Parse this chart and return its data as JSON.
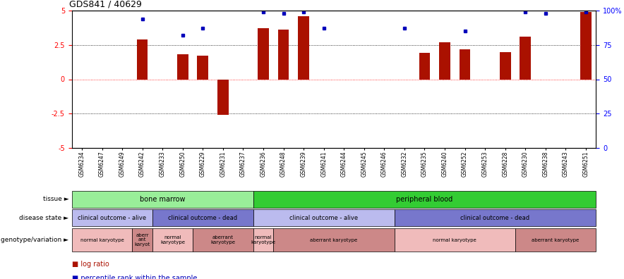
{
  "title": "GDS841 / 40629",
  "samples": [
    "GSM6234",
    "GSM6247",
    "GSM6249",
    "GSM6242",
    "GSM6233",
    "GSM6250",
    "GSM6229",
    "GSM6231",
    "GSM6237",
    "GSM6236",
    "GSM6248",
    "GSM6239",
    "GSM6241",
    "GSM6244",
    "GSM6245",
    "GSM6246",
    "GSM6232",
    "GSM6235",
    "GSM6240",
    "GSM6252",
    "GSM6253",
    "GSM6228",
    "GSM6230",
    "GSM6238",
    "GSM6243",
    "GSM6251"
  ],
  "log_ratio": [
    0.0,
    0.0,
    0.0,
    2.9,
    0.0,
    1.8,
    1.7,
    -2.6,
    0.0,
    3.7,
    3.6,
    4.6,
    0.0,
    0.0,
    0.0,
    0.0,
    0.0,
    1.9,
    2.7,
    2.2,
    0.0,
    2.0,
    3.1,
    0.0,
    0.0,
    4.9
  ],
  "percentile": [
    null,
    null,
    null,
    4.4,
    null,
    3.2,
    3.7,
    null,
    null,
    4.9,
    4.8,
    4.9,
    3.7,
    null,
    null,
    null,
    3.7,
    null,
    null,
    3.5,
    null,
    null,
    4.9,
    4.8,
    null,
    4.9
  ],
  "ylim": [
    -5,
    5
  ],
  "bar_color": "#aa1100",
  "dot_color": "#0000bb",
  "tissue_regions": [
    {
      "label": "bone marrow",
      "start": 0,
      "end": 8,
      "color": "#99ee99"
    },
    {
      "label": "peripheral blood",
      "start": 9,
      "end": 25,
      "color": "#33cc33"
    }
  ],
  "disease_regions": [
    {
      "label": "clinical outcome - alive",
      "start": 0,
      "end": 3,
      "color": "#bbbbee"
    },
    {
      "label": "clinical outcome - dead",
      "start": 4,
      "end": 8,
      "color": "#7777cc"
    },
    {
      "label": "clinical outcome - alive",
      "start": 9,
      "end": 15,
      "color": "#bbbbee"
    },
    {
      "label": "clinical outcome - dead",
      "start": 16,
      "end": 25,
      "color": "#7777cc"
    }
  ],
  "geno_regions": [
    {
      "label": "normal karyotype",
      "start": 0,
      "end": 2,
      "color": "#f0bbbb"
    },
    {
      "label": "aberr\nant\nkaryot",
      "start": 3,
      "end": 3,
      "color": "#cc8888"
    },
    {
      "label": "normal\nkaryotype",
      "start": 4,
      "end": 5,
      "color": "#f0bbbb"
    },
    {
      "label": "aberrant\nkaryotype",
      "start": 6,
      "end": 8,
      "color": "#cc8888"
    },
    {
      "label": "normal\nkaryotype",
      "start": 9,
      "end": 9,
      "color": "#f0bbbb"
    },
    {
      "label": "aberrant karyotype",
      "start": 10,
      "end": 15,
      "color": "#cc8888"
    },
    {
      "label": "normal karyotype",
      "start": 16,
      "end": 21,
      "color": "#f0bbbb"
    },
    {
      "label": "aberrant karyotype",
      "start": 22,
      "end": 25,
      "color": "#cc8888"
    }
  ]
}
